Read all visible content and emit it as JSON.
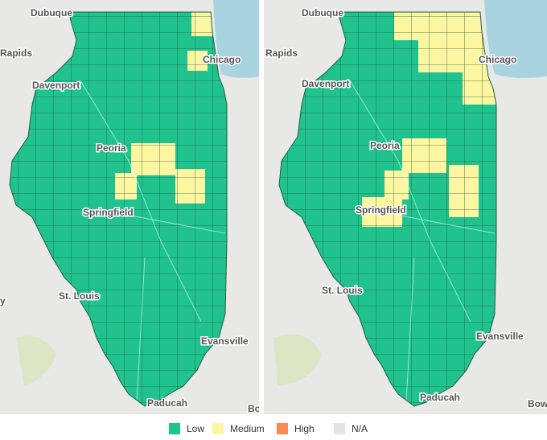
{
  "maps": [
    {
      "labels": [
        "Dubuque",
        "Rapids",
        "Chicago",
        "Davenport",
        "Peoria",
        "Springfield",
        "St. Louis",
        "Evansville",
        "Paducah",
        "y",
        "Bo"
      ]
    },
    {
      "labels": [
        "Dubuque",
        "Rapids",
        "Chicago",
        "Davenport",
        "Peoria",
        "Springfield",
        "St. Louis",
        "Evansville",
        "Paducah",
        "Bow"
      ]
    }
  ],
  "legend": [
    {
      "label": "Low",
      "color": "#20c28e"
    },
    {
      "label": "Medium",
      "color": "#fdf6a0"
    },
    {
      "label": "High",
      "color": "#f98a57"
    },
    {
      "label": "N/A",
      "color": "#e4e4e4"
    }
  ]
}
